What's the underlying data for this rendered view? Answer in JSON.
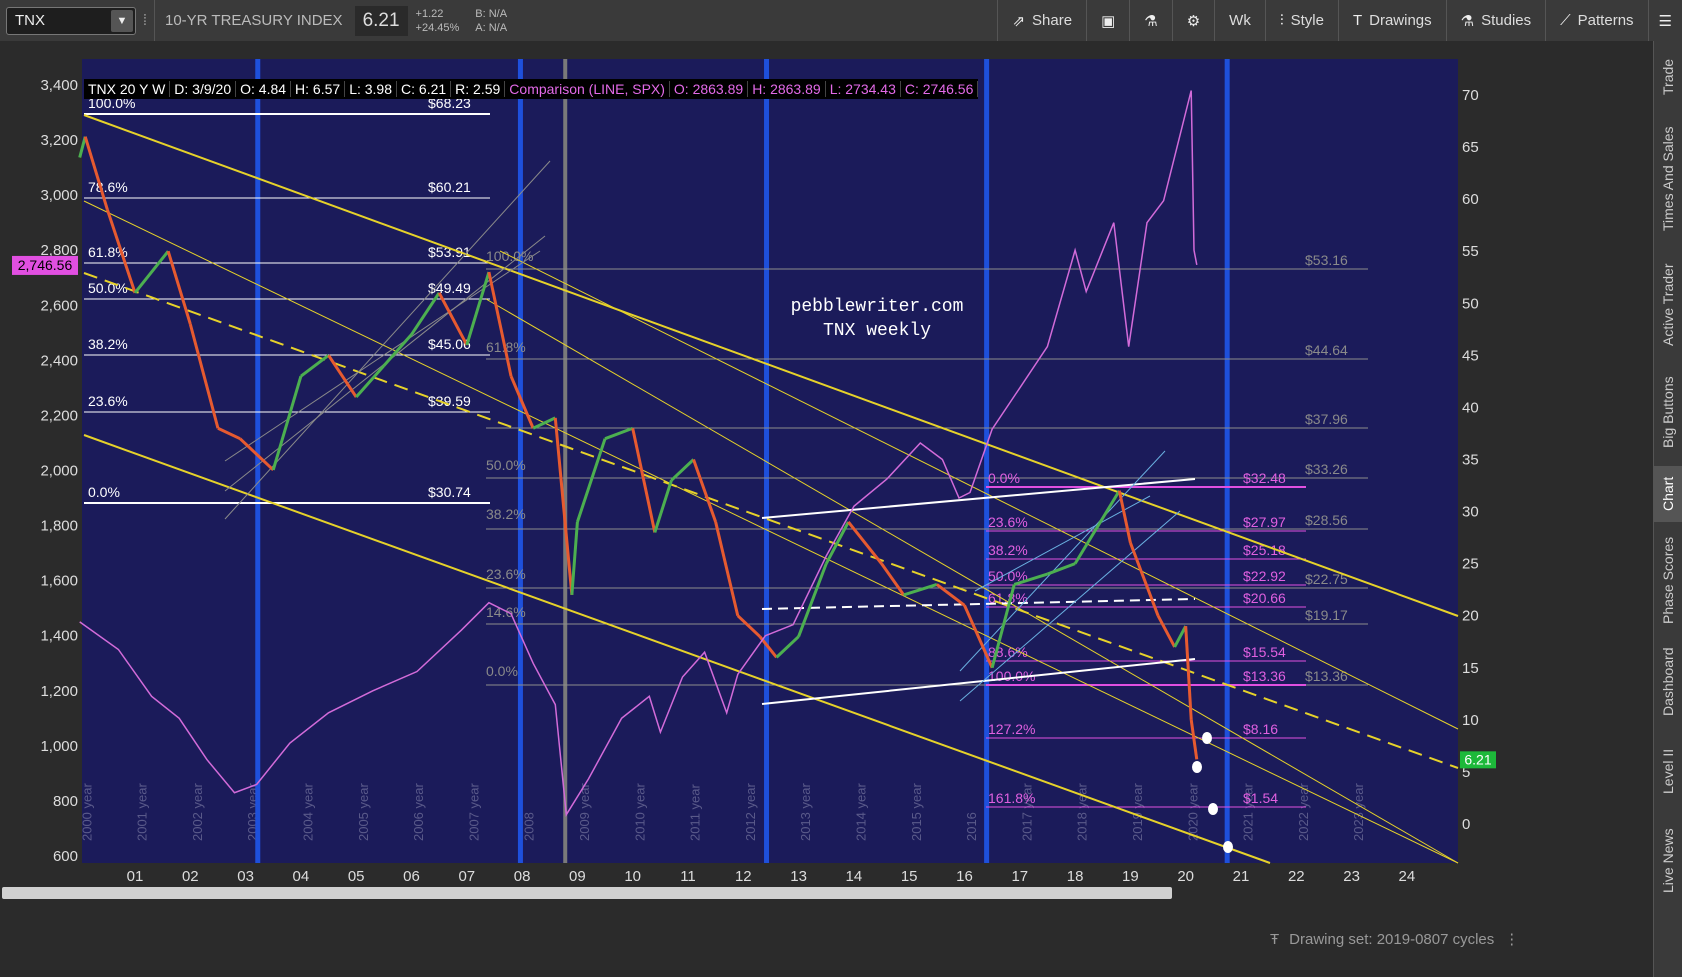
{
  "toolbar": {
    "symbol": "TNX",
    "index_name": "10-YR TREASURY INDEX",
    "price": "6.21",
    "change": "+1.22",
    "change_pct": "+24.45%",
    "bid": "B: N/A",
    "ask": "A: N/A",
    "share": "Share",
    "timeframe": "Wk",
    "style": "Style",
    "drawings": "Drawings",
    "studies": "Studies",
    "patterns": "Patterns"
  },
  "sidebar": [
    "Trade",
    "Times And Sales",
    "Active Trader",
    "Big Buttons",
    "Chart",
    "Phase Scores",
    "Dashboard",
    "Level II",
    "Live News"
  ],
  "legend": {
    "title": "TNX 20 Y W",
    "date": "D: 3/9/20",
    "open": "O: 4.84",
    "high": "H: 6.57",
    "low": "L: 3.98",
    "close": "C: 6.21",
    "range": "R: 2.59",
    "comparison": "Comparison (LINE, SPX)",
    "c_open": "O: 2863.89",
    "c_high": "H: 2863.89",
    "c_low": "L: 2734.43",
    "c_close": "C: 2746.56"
  },
  "bottom": {
    "drawing_set": "Drawing set: 2019-0807 cycles"
  },
  "watermark": [
    "pebblewriter.com",
    "TNX weekly"
  ],
  "colors": {
    "plot_bg": "#1b1b5a",
    "spx": "#d26bd9",
    "up_candle": "#4caf50",
    "down_candle": "#e65a30",
    "trend": "#e6d22a",
    "cycle": "#1e50dc",
    "fib_white": "#ffffff",
    "fib_magenta": "#e050e0",
    "grey_fib": "#8c8c8c",
    "price_tag": "#1db93a"
  },
  "chart_data": {
    "type": "line",
    "title": "",
    "left_axis": {
      "ticks": [
        "3,400",
        "3,200",
        "3,000",
        "2,800",
        "2,600",
        "2,400",
        "2,200",
        "2,000",
        "1,800",
        "1,600",
        "1,400",
        "1,200",
        "1,000",
        "800",
        "600"
      ],
      "range": [
        600,
        3400
      ]
    },
    "right_axis": {
      "ticks": [
        "70",
        "65",
        "60",
        "55",
        "50",
        "45",
        "40",
        "35",
        "30",
        "25",
        "20",
        "15",
        "10",
        "5",
        "0"
      ],
      "range": [
        -3,
        73
      ]
    },
    "x_ticks": [
      "01",
      "02",
      "03",
      "04",
      "05",
      "06",
      "07",
      "08",
      "09",
      "10",
      "11",
      "12",
      "13",
      "14",
      "15",
      "16",
      "17",
      "18",
      "19",
      "20",
      "21",
      "22",
      "23",
      "24"
    ],
    "year_labels": [
      "2000 year",
      "2001 year",
      "2002 year",
      "2003 year",
      "2004 year",
      "2005 year",
      "2006 year",
      "2007 year",
      "2008",
      "2009 year",
      "2010 year",
      "2011 year",
      "2012 year",
      "2013 year",
      "2014 year",
      "2015 year",
      "2016",
      "2017 year",
      "2018 year",
      "2019 year",
      "2020 year",
      "2021 year",
      "2022 year",
      "2023 year"
    ],
    "current_spx": "2,746.56",
    "current_tnx": "6.21",
    "series": [
      {
        "name": "SPX",
        "x": [
          2000.0,
          2000.7,
          2001.3,
          2001.8,
          2002.3,
          2002.8,
          2003.2,
          2003.8,
          2004.5,
          2005.3,
          2006.1,
          2006.9,
          2007.4,
          2007.8,
          2008.2,
          2008.6,
          2008.8,
          2009.2,
          2009.8,
          2010.3,
          2010.5,
          2010.9,
          2011.3,
          2011.7,
          2011.9,
          2012.4,
          2012.9,
          2013.5,
          2014.0,
          2014.6,
          2015.2,
          2015.6,
          2015.9,
          2016.1,
          2016.5,
          2017.0,
          2017.5,
          2018.0,
          2018.2,
          2018.7,
          2018.97,
          2019.3,
          2019.6,
          2020.1,
          2020.15,
          2020.2
        ],
        "y": [
          1450,
          1350,
          1180,
          1100,
          950,
          830,
          860,
          1010,
          1120,
          1200,
          1270,
          1420,
          1520,
          1480,
          1300,
          1150,
          750,
          880,
          1100,
          1180,
          1050,
          1250,
          1340,
          1120,
          1260,
          1400,
          1440,
          1690,
          1870,
          1970,
          2100,
          2040,
          1900,
          1920,
          2150,
          2300,
          2450,
          2800,
          2650,
          2900,
          2450,
          2900,
          2980,
          3380,
          2800,
          2746.56
        ]
      },
      {
        "name": "TNX",
        "x": [
          2000.0,
          2000.1,
          2000.5,
          2001.0,
          2001.6,
          2002.0,
          2002.5,
          2002.9,
          2003.5,
          2004.0,
          2004.5,
          2005.0,
          2005.5,
          2006.0,
          2006.5,
          2007.0,
          2007.4,
          2007.8,
          2008.2,
          2008.6,
          2008.9,
          2009.0,
          2009.5,
          2010.0,
          2010.4,
          2010.7,
          2011.1,
          2011.5,
          2011.9,
          2012.3,
          2012.6,
          2013.0,
          2013.5,
          2013.9,
          2014.5,
          2014.9,
          2015.5,
          2016.0,
          2016.5,
          2016.9,
          2017.5,
          2018.0,
          2018.8,
          2019.0,
          2019.5,
          2019.8,
          2020.0,
          2020.1,
          2020.2
        ],
        "y": [
          64,
          66,
          59,
          51,
          55,
          48,
          38,
          37,
          34,
          43,
          45,
          41,
          44,
          47,
          51,
          46,
          53,
          43,
          38,
          39,
          22,
          29,
          37,
          38,
          28,
          33,
          35,
          29,
          20,
          18,
          16,
          18,
          25,
          29,
          25,
          22,
          23,
          21,
          15,
          23,
          24,
          25,
          32,
          27,
          20,
          17,
          19,
          10,
          6.21
        ]
      }
    ],
    "fib_levels_left": [
      {
        "pct": "100.0%",
        "value": "$68.23"
      },
      {
        "pct": "78.6%",
        "value": "$60.21"
      },
      {
        "pct": "61.8%",
        "value": "$53.91"
      },
      {
        "pct": "50.0%",
        "value": "$49.49"
      },
      {
        "pct": "38.2%",
        "value": "$45.06"
      },
      {
        "pct": "23.6%",
        "value": "$39.59"
      },
      {
        "pct": "0.0%",
        "value": "$30.74"
      }
    ],
    "fib_levels_mid": [
      "100.0%",
      "61.8%",
      "50.0%",
      "38.2%",
      "23.6%",
      "14.6%",
      "0.0%"
    ],
    "fib_levels_grey": [
      "$53.16",
      "$44.64",
      "$37.96",
      "$33.26",
      "$28.56",
      "$22.75",
      "$19.17",
      "$13.36"
    ],
    "fib_levels_right": [
      {
        "pct": "0.0%",
        "value": "$32.48"
      },
      {
        "pct": "23.6%",
        "value": "$27.97"
      },
      {
        "pct": "38.2%",
        "value": "$25.18"
      },
      {
        "pct": "50.0%",
        "value": "$22.92"
      },
      {
        "pct": "61.8%",
        "value": "$20.66"
      },
      {
        "pct": "88.6%",
        "value": "$15.54"
      },
      {
        "pct": "100.0%",
        "value": "$13.36"
      },
      {
        "pct": "127.2%",
        "value": "$8.16"
      },
      {
        "pct": "161.8%",
        "value": "$1.54"
      }
    ],
    "cycle_lines_x": [
      2003.22,
      2007.97,
      2012.42,
      2016.4,
      2020.75
    ],
    "crash_line_x": 2008.78
  }
}
